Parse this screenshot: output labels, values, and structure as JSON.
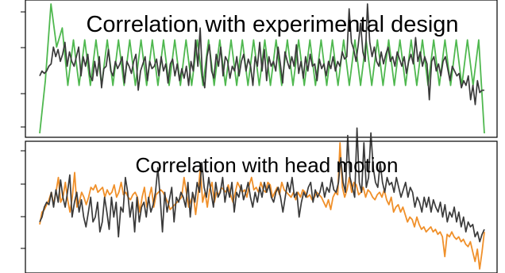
{
  "chart_data": [
    {
      "type": "line",
      "title": "Correlation with experimental design",
      "xlabel": "",
      "ylabel": "",
      "grid": false,
      "x_range": [
        0,
        199
      ],
      "y_range": [
        -1.35,
        1.45
      ],
      "axis_color": "#000000",
      "series": [
        {
          "color": "#4fb84f",
          "pattern": "block-design square/sinusoid: ~2.6 timepoints per half-cycle, constant amplitude after initial transient",
          "values": [
            -1.3,
            -0.2,
            1.4,
            0.5,
            0.9,
            -0.3,
            0.65,
            -0.3,
            0.65,
            -0.3,
            0.65,
            -0.3,
            0.65,
            -0.3,
            0.65,
            -0.3,
            0.65,
            -0.3,
            0.65,
            -0.3,
            0.65,
            -0.3,
            0.65,
            -0.3,
            0.65,
            -0.3,
            0.65,
            -0.3,
            0.65,
            -0.3,
            0.65,
            -0.3,
            0.65,
            -0.3,
            0.65,
            -0.3,
            0.65,
            -0.3,
            0.65,
            -0.3,
            0.65,
            -0.3,
            0.65,
            -0.3,
            0.65,
            -0.3,
            0.65,
            -0.3,
            0.65,
            -0.3,
            0.65,
            -0.3,
            0.65,
            -0.3,
            0.65,
            -0.3,
            0.65,
            -0.3,
            0.65,
            -0.3,
            0.65,
            -0.3,
            0.65,
            -0.3,
            0.65,
            -0.3,
            0.65,
            -0.3,
            0.65,
            -0.3,
            0.65,
            -0.3,
            0.65,
            -0.3,
            0.65,
            -0.3,
            0.65,
            -0.3,
            0.65,
            -1.3
          ]
        },
        {
          "color": "#3a3a3a",
          "values": [
            -0.1,
            0.0,
            -0.05,
            0.0,
            0.1,
            0.15,
            0.5,
            0.3,
            0.45,
            0.2,
            0.35,
            0.6,
            0.1,
            0.4,
            0.2,
            0.1,
            0.3,
            0.5,
            -0.1,
            0.3,
            0.1,
            0.35,
            -0.1,
            -0.2,
            0.2,
            -0.1,
            0.3,
            -0.35,
            0.05,
            0.1,
            0.45,
            0.0,
            -0.1,
            0.2,
            0.05,
            0.15,
            0.3,
            -0.25,
            0.2,
            0.1,
            -0.05,
            0.2,
            0.35,
            -0.4,
            0.0,
            0.15,
            0.3,
            -0.2,
            0.2,
            0.05,
            0.1,
            0.25,
            -0.1,
            0.3,
            0.0,
            0.15,
            -0.25,
            0.15,
            0.25,
            -0.1,
            0.15,
            -0.2,
            0.05,
            -0.15,
            0.1,
            -0.3,
            0.2,
            0.0,
            0.65,
            0.1,
            0.9,
            -0.1,
            -0.35,
            0.3,
            0.55,
            0.0,
            -0.15,
            0.35,
            0.1,
            0.5,
            -0.1,
            0.3,
            0.2,
            -0.15,
            0.1,
            0.0,
            0.3,
            -0.1,
            0.2,
            0.35,
            0.0,
            0.25,
            0.1,
            -0.3,
            0.3,
            0.1,
            0.6,
            0.0,
            0.45,
            -0.2,
            0.3,
            0.1,
            0.2,
            0.0,
            0.5,
            0.15,
            -0.25,
            0.4,
            0.2,
            0.05,
            0.3,
            0.1,
            0.55,
            -0.05,
            0.2,
            -0.15,
            0.3,
            0.0,
            0.35,
            0.1,
            0.15,
            -0.2,
            0.25,
            0.05,
            0.15,
            -0.1,
            0.2,
            0.05,
            0.3,
            0.0,
            0.2,
            0.1,
            0.4,
            0.25,
            0.3,
            1.3,
            0.6,
            0.45,
            0.2,
            0.55,
            1.0,
            0.4,
            0.2,
            1.4,
            0.6,
            0.3,
            0.5,
            0.2,
            0.1,
            0.4,
            0.15,
            0.35,
            0.5,
            0.2,
            0.3,
            0.1,
            0.4,
            0.25,
            0.1,
            0.3,
            -0.05,
            0.2,
            0.35,
            0.15,
            0.7,
            0.2,
            0.4,
            0.1,
            0.3,
            0.15,
            -0.6,
            0.2,
            0.3,
            0.0,
            0.15,
            -0.1,
            0.2,
            0.3,
            0.05,
            -0.2,
            0.1,
            0.0,
            -0.1,
            -0.05,
            -0.35,
            -0.2,
            -0.3,
            -0.1,
            -0.6,
            -0.3,
            -0.7,
            -0.2,
            -0.45,
            -0.4,
            -0.4
          ]
        }
      ]
    },
    {
      "type": "line",
      "title": "Correlation with head motion",
      "xlabel": "",
      "ylabel": "",
      "grid": false,
      "x_range": [
        0,
        199
      ],
      "y_range": [
        -1.3,
        1.3
      ],
      "axis_color": "#000000",
      "series": [
        {
          "color": "#f0902a",
          "values": [
            -0.35,
            -0.1,
            -0.05,
            0.05,
            0.15,
            0.3,
            0.05,
            0.3,
            0.6,
            0.1,
            0.2,
            0.5,
            0.15,
            -0.1,
            0.2,
            0.7,
            0.0,
            0.1,
            0.3,
            0.2,
            0.05,
            0.2,
            0.4,
            0.35,
            0.45,
            0.3,
            0.35,
            0.4,
            0.2,
            0.35,
            0.25,
            0.3,
            0.45,
            0.2,
            0.3,
            0.5,
            0.25,
            0.3,
            0.2,
            0.15,
            0.25,
            0.3,
            0.2,
            -0.1,
            0.2,
            0.4,
            0.0,
            0.2,
            0.4,
            0.0,
            0.25,
            0.3,
            0.35,
            0.3,
            0.2,
            0.1,
            -0.05,
            0.0,
            0.05,
            0.1,
            0.15,
            0.2,
            0.6,
            0.3,
            0.0,
            0.15,
            0.25,
            -0.15,
            0.25,
            0.8,
            0.1,
            0.3,
            0.0,
            0.35,
            0.5,
            0.1,
            0.3,
            0.25,
            0.4,
            0.35,
            0.3,
            0.45,
            0.25,
            0.1,
            0.3,
            0.5,
            0.4,
            0.3,
            0.35,
            0.2,
            0.45,
            0.6,
            0.35,
            0.4,
            0.3,
            0.5,
            0.35,
            0.3,
            0.5,
            0.45,
            0.2,
            0.3,
            0.4,
            0.25,
            0.5,
            0.35,
            0.3,
            0.25,
            0.2,
            0.3,
            0.15,
            0.3,
            0.2,
            0.35,
            0.3,
            0.2,
            0.25,
            0.15,
            0.2,
            0.3,
            0.25,
            0.2,
            0.1,
            0.0,
            0.15,
            -0.05,
            0.2,
            0.3,
            0.25,
            1.3,
            0.4,
            0.2,
            0.35,
            0.6,
            0.3,
            0.5,
            0.45,
            0.25,
            0.3,
            0.4,
            0.2,
            0.35,
            0.3,
            0.2,
            0.15,
            0.25,
            0.3,
            0.2,
            0.35,
            0.15,
            0.05,
            0.2,
            -0.1,
            0.0,
            0.05,
            -0.1,
            0.0,
            -0.15,
            -0.3,
            -0.2,
            -0.25,
            -0.4,
            -0.2,
            -0.35,
            -0.45,
            -0.4,
            -0.5,
            -0.45,
            -0.4,
            -0.5,
            -0.45,
            -0.55,
            -0.5,
            -0.6,
            -1.0,
            -0.55,
            -0.6,
            -0.5,
            -0.6,
            -0.65,
            -0.6,
            -0.7,
            -0.65,
            -0.75,
            -0.8,
            -0.7,
            -0.9,
            -1.1,
            -0.85,
            -1.25,
            -0.9,
            -0.5
          ]
        },
        {
          "color": "#3a3a3a",
          "values": [
            -0.3,
            -0.2,
            0.0,
            0.1,
            0.05,
            0.3,
            0.0,
            0.35,
            0.1,
            0.55,
            0.2,
            0.0,
            0.3,
            0.65,
            -0.2,
            0.1,
            0.3,
            -0.1,
            0.15,
            -0.2,
            -0.4,
            -0.1,
            0.2,
            -0.3,
            -0.2,
            0.1,
            -0.5,
            -0.3,
            0.2,
            -0.1,
            -0.45,
            0.2,
            -0.2,
            0.1,
            -0.6,
            0.0,
            -0.1,
            0.6,
            0.3,
            -0.2,
            0.1,
            -0.5,
            0.2,
            -0.3,
            0.0,
            0.1,
            -0.2,
            0.2,
            -0.1,
            0.05,
            0.3,
            0.8,
            0.2,
            -0.5,
            0.3,
            -0.1,
            0.15,
            0.4,
            -0.3,
            0.2,
            0.1,
            0.3,
            0.2,
            0.0,
            0.5,
            -0.2,
            0.3,
            0.1,
            0.5,
            0.3,
            0.9,
            0.4,
            0.2,
            0.6,
            0.3,
            0.0,
            0.5,
            0.2,
            0.3,
            0.6,
            0.1,
            0.4,
            0.2,
            0.5,
            -0.1,
            0.3,
            0.2,
            0.45,
            0.15,
            0.3,
            0.5,
            0.2,
            0.0,
            0.3,
            0.1,
            0.4,
            0.2,
            0.5,
            0.3,
            0.45,
            0.2,
            0.1,
            0.3,
            0.4,
            0.2,
            -0.1,
            0.2,
            0.5,
            0.3,
            0.6,
            0.2,
            0.3,
            -0.2,
            0.1,
            0.3,
            0.2,
            0.4,
            0.5,
            0.1,
            0.35,
            0.2,
            0.3,
            0.5,
            0.2,
            0.4,
            0.3,
            0.6,
            0.35,
            0.3,
            0.5,
            1.0,
            0.5,
            0.3,
            1.45,
            0.6,
            0.4,
            0.2,
            1.6,
            0.5,
            0.3,
            1.3,
            0.4,
            0.6,
            1.5,
            0.8,
            0.5,
            0.4,
            0.9,
            0.5,
            0.3,
            0.6,
            0.45,
            0.5,
            0.3,
            0.6,
            0.4,
            0.2,
            0.35,
            0.5,
            0.2,
            0.4,
            0.3,
            0.0,
            0.2,
            0.1,
            -0.1,
            0.2,
            0.0,
            0.2,
            -0.1,
            0.15,
            0.0,
            -0.1,
            0.1,
            -0.2,
            0.05,
            -0.3,
            -0.1,
            -0.2,
            0.0,
            -0.3,
            -0.1,
            -0.4,
            -0.2,
            -0.5,
            -0.3,
            -0.4,
            -0.35,
            -0.6,
            -0.5,
            -0.7,
            -0.55,
            -0.45
          ]
        }
      ]
    }
  ]
}
